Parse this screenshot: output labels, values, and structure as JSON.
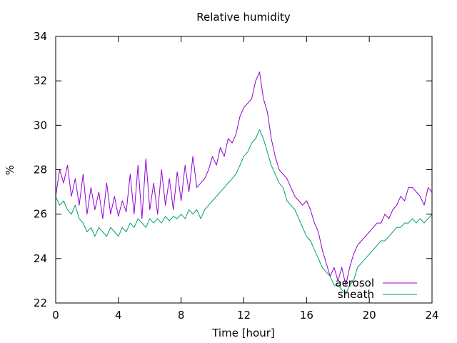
{
  "chart_data": {
    "type": "line",
    "title": "Relative humidity",
    "xlabel": "Time [hour]",
    "ylabel": "%",
    "xlim": [
      0,
      24
    ],
    "ylim": [
      22,
      34
    ],
    "xticks": [
      0,
      4,
      8,
      12,
      16,
      20,
      24
    ],
    "yticks": [
      22,
      24,
      26,
      28,
      30,
      32,
      34
    ],
    "grid": false,
    "legend_position": "bottom-right",
    "series": [
      {
        "name": "aerosol",
        "color": "#9400d3",
        "x": [
          0,
          0.25,
          0.5,
          0.75,
          1,
          1.25,
          1.5,
          1.75,
          2,
          2.25,
          2.5,
          2.75,
          3,
          3.25,
          3.5,
          3.75,
          4,
          4.25,
          4.5,
          4.75,
          5,
          5.25,
          5.5,
          5.75,
          6,
          6.25,
          6.5,
          6.75,
          7,
          7.25,
          7.5,
          7.75,
          8,
          8.25,
          8.5,
          8.75,
          9,
          9.25,
          9.5,
          9.75,
          10,
          10.25,
          10.5,
          10.75,
          11,
          11.25,
          11.5,
          11.75,
          12,
          12.25,
          12.5,
          12.75,
          13,
          13.25,
          13.5,
          13.75,
          14,
          14.25,
          14.5,
          14.75,
          15,
          15.25,
          15.5,
          15.75,
          16,
          16.25,
          16.5,
          16.75,
          17,
          17.25,
          17.5,
          17.75,
          18,
          18.25,
          18.5,
          18.75,
          19,
          19.25,
          19.5,
          19.75,
          20,
          20.25,
          20.5,
          20.75,
          21,
          21.25,
          21.5,
          21.75,
          22,
          22.25,
          22.5,
          22.75,
          23,
          23.25,
          23.5,
          23.75,
          24
        ],
        "values": [
          26.8,
          28.0,
          27.4,
          28.2,
          26.8,
          27.6,
          26.4,
          27.8,
          26.0,
          27.2,
          26.2,
          27.0,
          25.8,
          27.4,
          26.0,
          26.8,
          25.9,
          26.6,
          26.1,
          27.8,
          26.0,
          28.2,
          25.8,
          28.5,
          26.2,
          27.4,
          26.0,
          28.0,
          26.4,
          27.6,
          26.2,
          27.9,
          26.6,
          28.2,
          27.0,
          28.6,
          27.2,
          27.4,
          27.6,
          28.0,
          28.6,
          28.2,
          29.0,
          28.6,
          29.4,
          29.2,
          29.6,
          30.4,
          30.8,
          31.0,
          31.2,
          32.0,
          32.4,
          31.2,
          30.6,
          29.4,
          28.6,
          28.0,
          27.8,
          27.6,
          27.2,
          26.8,
          26.6,
          26.4,
          26.6,
          26.2,
          25.6,
          25.2,
          24.4,
          23.8,
          23.2,
          23.6,
          23.0,
          23.6,
          22.8,
          23.6,
          24.2,
          24.6,
          24.8,
          25.0,
          25.2,
          25.4,
          25.6,
          25.6,
          26.0,
          25.8,
          26.2,
          26.4,
          26.8,
          26.6,
          27.2,
          27.2,
          27.0,
          26.8,
          26.4,
          27.2,
          27.0
        ]
      },
      {
        "name": "sheath",
        "color": "#009e73",
        "x": [
          0,
          0.25,
          0.5,
          0.75,
          1,
          1.25,
          1.5,
          1.75,
          2,
          2.25,
          2.5,
          2.75,
          3,
          3.25,
          3.5,
          3.75,
          4,
          4.25,
          4.5,
          4.75,
          5,
          5.25,
          5.5,
          5.75,
          6,
          6.25,
          6.5,
          6.75,
          7,
          7.25,
          7.5,
          7.75,
          8,
          8.25,
          8.5,
          8.75,
          9,
          9.25,
          9.5,
          9.75,
          10,
          10.25,
          10.5,
          10.75,
          11,
          11.25,
          11.5,
          11.75,
          12,
          12.25,
          12.5,
          12.75,
          13,
          13.25,
          13.5,
          13.75,
          14,
          14.25,
          14.5,
          14.75,
          15,
          15.25,
          15.5,
          15.75,
          16,
          16.25,
          16.5,
          16.75,
          17,
          17.25,
          17.5,
          17.75,
          18,
          18.25,
          18.5,
          18.75,
          19,
          19.25,
          19.5,
          19.75,
          20,
          20.25,
          20.5,
          20.75,
          21,
          21.25,
          21.5,
          21.75,
          22,
          22.25,
          22.5,
          22.75,
          23,
          23.25,
          23.5,
          23.75,
          24
        ],
        "values": [
          26.8,
          26.4,
          26.6,
          26.2,
          26.0,
          26.4,
          25.8,
          25.6,
          25.2,
          25.4,
          25.0,
          25.4,
          25.2,
          25.0,
          25.4,
          25.2,
          25.0,
          25.4,
          25.2,
          25.6,
          25.4,
          25.8,
          25.6,
          25.4,
          25.8,
          25.6,
          25.8,
          25.6,
          25.9,
          25.7,
          25.9,
          25.8,
          26.0,
          25.8,
          26.2,
          26.0,
          26.2,
          25.8,
          26.2,
          26.4,
          26.6,
          26.8,
          27.0,
          27.2,
          27.4,
          27.6,
          27.8,
          28.2,
          28.6,
          28.8,
          29.2,
          29.4,
          29.8,
          29.4,
          28.8,
          28.2,
          27.8,
          27.4,
          27.2,
          26.6,
          26.4,
          26.2,
          25.8,
          25.4,
          25.0,
          24.8,
          24.4,
          24.0,
          23.6,
          23.4,
          23.2,
          22.8,
          22.8,
          22.6,
          22.4,
          22.8,
          23.0,
          23.6,
          23.8,
          24.0,
          24.2,
          24.4,
          24.6,
          24.8,
          24.8,
          25.0,
          25.2,
          25.4,
          25.4,
          25.6,
          25.6,
          25.8,
          25.6,
          25.8,
          25.6,
          25.8,
          26.0
        ]
      }
    ]
  }
}
